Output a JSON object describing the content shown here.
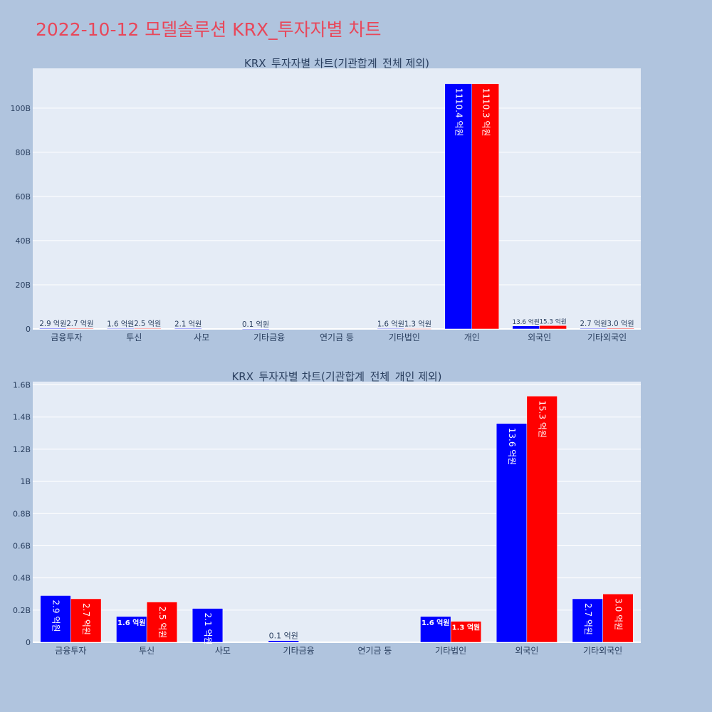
{
  "page_title": "2022-10-12 모델솔루션 KRX_투자자별 차트",
  "colors": {
    "background": "#b0c4de",
    "plot_bg": "#e5ecf6",
    "title": "#e8475a",
    "series_buy": "#0000ff",
    "series_sell": "#ff0000",
    "text": "#2a3f5f"
  },
  "chart_data": [
    {
      "type": "bar",
      "title": "KRX_투자자별 차트(기관합계_전체 제외)",
      "categories": [
        "금융투자",
        "투신",
        "사모",
        "기타금융",
        "연기금 등",
        "기타법인",
        "개인",
        "외국인",
        "기타외국인"
      ],
      "series": [
        {
          "values": [
            0.29,
            0.16,
            0.21,
            0.01,
            0,
            0.16,
            111.04,
            1.36,
            0.27
          ],
          "labels": [
            "2.9 억원",
            "1.6 억원",
            "2.1 억원",
            "0.1 억원",
            "",
            "1.6 억원",
            "1110.4 억원",
            "13.6 억원",
            "2.7 억원"
          ]
        },
        {
          "values": [
            0.27,
            0.25,
            0,
            0,
            0,
            0.13,
            111.03,
            1.53,
            0.3
          ],
          "labels": [
            "2.7 억원",
            "2.5 억원",
            "",
            "",
            "",
            "1.3 억원",
            "1110.3 억원",
            "15.3 억원",
            "3.0 억원"
          ]
        }
      ],
      "ylim": [
        0,
        118
      ],
      "yticks": [
        0,
        20,
        40,
        60,
        80,
        100
      ],
      "yticklabels": [
        "0",
        "20B",
        "40B",
        "60B",
        "80B",
        "100B"
      ],
      "grid": true
    },
    {
      "type": "bar",
      "title": "KRX_투자자별 차트(기관합계_전체_개인 제외)",
      "categories": [
        "금융투자",
        "투신",
        "사모",
        "기타금융",
        "연기금 등",
        "기타법인",
        "외국인",
        "기타외국인"
      ],
      "series": [
        {
          "values": [
            0.29,
            0.16,
            0.21,
            0.01,
            0,
            0.16,
            1.36,
            0.27
          ],
          "labels": [
            "2.9 억원",
            "1.6 억원",
            "2.1 억원",
            "0.1 억원",
            "",
            "1.6 억원",
            "13.6 억원",
            "2.7 억원"
          ]
        },
        {
          "values": [
            0.27,
            0.25,
            0,
            0,
            0,
            0.13,
            1.53,
            0.3
          ],
          "labels": [
            "2.7 억원",
            "2.5 억원",
            "",
            "",
            "",
            "1.3 억원",
            "15.3 억원",
            "3.0 억원"
          ]
        }
      ],
      "ylim": [
        0,
        1.62
      ],
      "yticks": [
        0,
        0.2,
        0.4,
        0.6,
        0.8,
        1.0,
        1.2,
        1.4,
        1.6
      ],
      "yticklabels": [
        "0",
        "0.2B",
        "0.4B",
        "0.6B",
        "0.8B",
        "1B",
        "1.2B",
        "1.4B",
        "1.6B"
      ],
      "grid": true
    }
  ]
}
